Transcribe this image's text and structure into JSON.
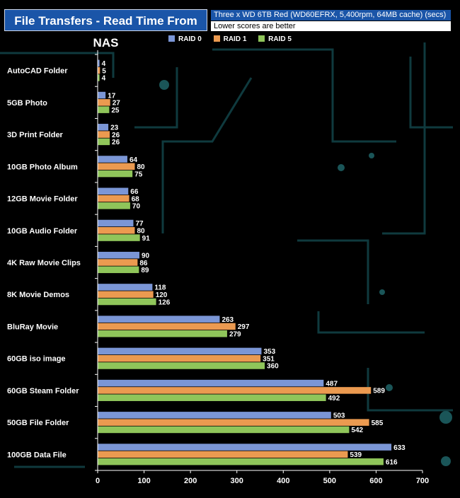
{
  "chart_data": {
    "type": "bar",
    "orientation": "horizontal",
    "title": "File Transfers - Read Time From NAS",
    "subtitle": "Three x WD 6TB Red (WD60EFRX, 5,400rpm, 64MB cache) (secs)",
    "note": "Lower scores are better",
    "categories": [
      "AutoCAD Folder",
      "5GB Photo",
      "3D Print Folder",
      "10GB Photo Album",
      "12GB Movie Folder",
      "10GB Audio Folder",
      "4K Raw Movie Clips",
      "8K Movie Demos",
      "BluRay Movie",
      "60GB iso image",
      "60GB Steam Folder",
      "50GB File Folder",
      "100GB  Data File"
    ],
    "series": [
      {
        "name": "RAID 0",
        "color": "#7b96d6",
        "values": [
          4,
          17,
          23,
          64,
          66,
          77,
          90,
          118,
          263,
          353,
          487,
          503,
          633
        ]
      },
      {
        "name": "RAID 1",
        "color": "#eb9a50",
        "values": [
          5,
          27,
          26,
          80,
          68,
          80,
          86,
          120,
          297,
          351,
          589,
          585,
          539
        ]
      },
      {
        "name": "RAID 5",
        "color": "#8fc55a",
        "values": [
          4,
          25,
          26,
          75,
          70,
          91,
          89,
          126,
          279,
          360,
          492,
          542,
          616
        ]
      }
    ],
    "xlim": [
      0,
      700
    ],
    "xticks": [
      0,
      100,
      200,
      300,
      400,
      500,
      600,
      700
    ],
    "legend_position": "top-center",
    "grid": false
  }
}
